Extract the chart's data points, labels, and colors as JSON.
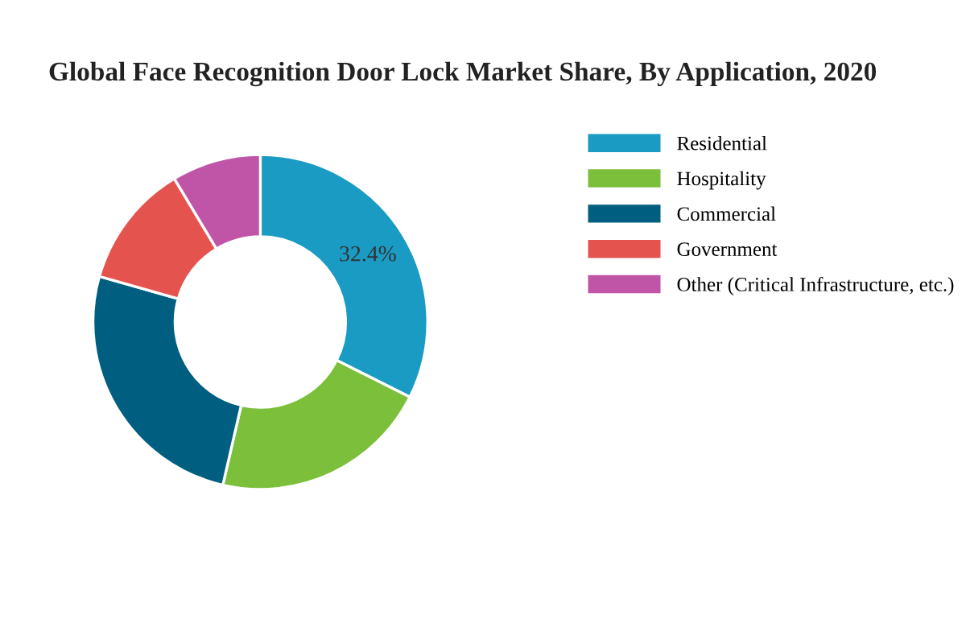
{
  "chart_data": {
    "type": "donut",
    "title": "Global Face Recognition Door Lock Market Share, By Application, 2020",
    "categories": [
      "Residential",
      "Hospitality",
      "Commercial",
      "Government",
      "Other (Critical Infrastructure, etc.)"
    ],
    "values": [
      32.4,
      21.2,
      25.8,
      12.0,
      8.6
    ],
    "colors": [
      "#1a9bc4",
      "#7cbf3a",
      "#005f80",
      "#e5534f",
      "#c055a8"
    ],
    "value_labels": [
      "32.4%",
      null,
      null,
      null,
      null
    ],
    "legend": "right"
  }
}
